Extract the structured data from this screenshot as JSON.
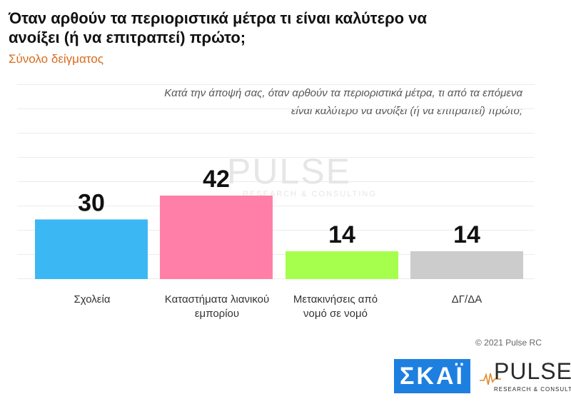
{
  "chart_data": {
    "type": "bar",
    "title": "Όταν αρθούν τα περιοριστικά μέτρα τι είναι καλύτερο να ανοίξει (ή να επιτραπεί) πρώτο;",
    "subtitle": "Σύνολο δείγματος",
    "question": "Κατά την άποψή σας, όταν αρθούν τα περιοριστικά μέτρα, τι από τα επόμενα είναι καλύτερο να ανοίξει (ή να επιτραπεί) πρώτο;",
    "categories": [
      "Σχολεία",
      "Καταστήματα λιανικού εμπορίου",
      "Μετακινήσεις από νομό σε νομό",
      "ΔΓ/ΔΑ"
    ],
    "values": [
      30,
      42,
      14,
      14
    ],
    "colors": [
      "#3bb8f3",
      "#ff7fa8",
      "#a6ff4d",
      "#cccccc"
    ],
    "ylim": [
      0,
      80
    ],
    "grid": true,
    "xlabel": "",
    "ylabel": ""
  },
  "watermark": {
    "main": "PULSE",
    "sub": "RESEARCH & CONSULTING"
  },
  "footer": {
    "copyright": "© 2021 Pulse RC",
    "skai_logo": "ΣΚΑΪ",
    "pulse_logo": "PULSE",
    "pulse_logo_sub": "RESEARCH & CONSULTING"
  }
}
